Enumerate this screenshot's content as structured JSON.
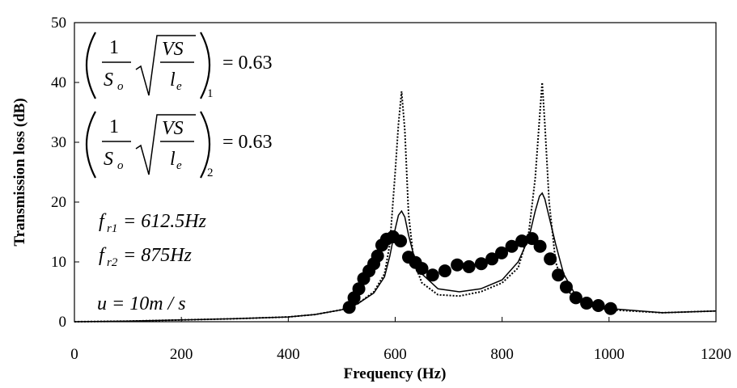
{
  "chart_data": {
    "type": "line",
    "xlabel": "Frequency (Hz)",
    "ylabel": "Transmission loss (dB)",
    "xlim": [
      0,
      1200
    ],
    "ylim": [
      0,
      50
    ],
    "xticks": [
      0,
      200,
      400,
      600,
      800,
      1000,
      1200
    ],
    "yticks": [
      0,
      10,
      20,
      30,
      40,
      50
    ],
    "series": [
      {
        "style": "dotted",
        "color": "#000000",
        "x": [
          0,
          100,
          200,
          300,
          400,
          450,
          500,
          530,
          560,
          580,
          590,
          600,
          606,
          612,
          618,
          625,
          635,
          650,
          680,
          720,
          760,
          800,
          830,
          850,
          862,
          870,
          875,
          880,
          888,
          900,
          915,
          940,
          970,
          1000,
          1100,
          1200
        ],
        "values": [
          0,
          0.1,
          0.3,
          0.5,
          0.8,
          1.2,
          2,
          3,
          5,
          8,
          13,
          25,
          33,
          38.5,
          32,
          18,
          10,
          6.5,
          4.5,
          4.3,
          5,
          6.5,
          9,
          15,
          24,
          34,
          40,
          33,
          20,
          10,
          6,
          3.5,
          2.5,
          2,
          1.5,
          1.8
        ]
      },
      {
        "style": "solid",
        "color": "#000000",
        "x": [
          0,
          100,
          200,
          300,
          400,
          450,
          500,
          530,
          560,
          580,
          590,
          600,
          606,
          612,
          618,
          625,
          635,
          650,
          680,
          720,
          760,
          800,
          830,
          850,
          862,
          870,
          875,
          880,
          888,
          900,
          915,
          940,
          970,
          1000,
          1100,
          1200
        ],
        "values": [
          0,
          0.1,
          0.3,
          0.5,
          0.8,
          1.2,
          2,
          3,
          4.8,
          7.5,
          11,
          15.5,
          17.8,
          18.5,
          17.5,
          14.5,
          11,
          8,
          5.5,
          5,
          5.5,
          7,
          10,
          14,
          18.5,
          21,
          21.5,
          20.5,
          17.5,
          13,
          8,
          4,
          2.8,
          2.2,
          1.5,
          1.8
        ]
      },
      {
        "style": "markers",
        "color": "#000000",
        "x": [
          514,
          523,
          532,
          541,
          551,
          560,
          567,
          575,
          584,
          596,
          610,
          625,
          638,
          650,
          670,
          693,
          716,
          738,
          761,
          781,
          799,
          818,
          837,
          856,
          871,
          890,
          905,
          920,
          938,
          958,
          980,
          1003
        ],
        "values": [
          2.4,
          4,
          5.5,
          7.2,
          8.5,
          9.7,
          11,
          12.8,
          13.8,
          14.2,
          13.5,
          10.8,
          9.9,
          8.9,
          7.8,
          8.5,
          9.5,
          9.2,
          9.7,
          10.5,
          11.5,
          12.6,
          13.5,
          13.9,
          12.6,
          10.5,
          7.8,
          5.8,
          4,
          3.1,
          2.7,
          2.2
        ]
      }
    ],
    "annotations": [
      {
        "numerator": "1",
        "denominator": "S",
        "denominator_sub": "o",
        "radicand_top": "VS",
        "radicand_bottom": "l",
        "radicand_bottom_sub": "e",
        "subscript": "1",
        "text": "= 0.63"
      },
      {
        "numerator": "1",
        "denominator": "S",
        "denominator_sub": "o",
        "radicand_top": "VS",
        "radicand_bottom": "l",
        "radicand_bottom_sub": "e",
        "subscript": "2",
        "text": "= 0.63"
      },
      {
        "symbol": "f",
        "sub": "r1",
        "text": "= 612.5Hz"
      },
      {
        "symbol": "f",
        "sub": "r2",
        "text": "= 875Hz"
      },
      {
        "symbol": "u",
        "text": "= 10m / s"
      }
    ]
  }
}
